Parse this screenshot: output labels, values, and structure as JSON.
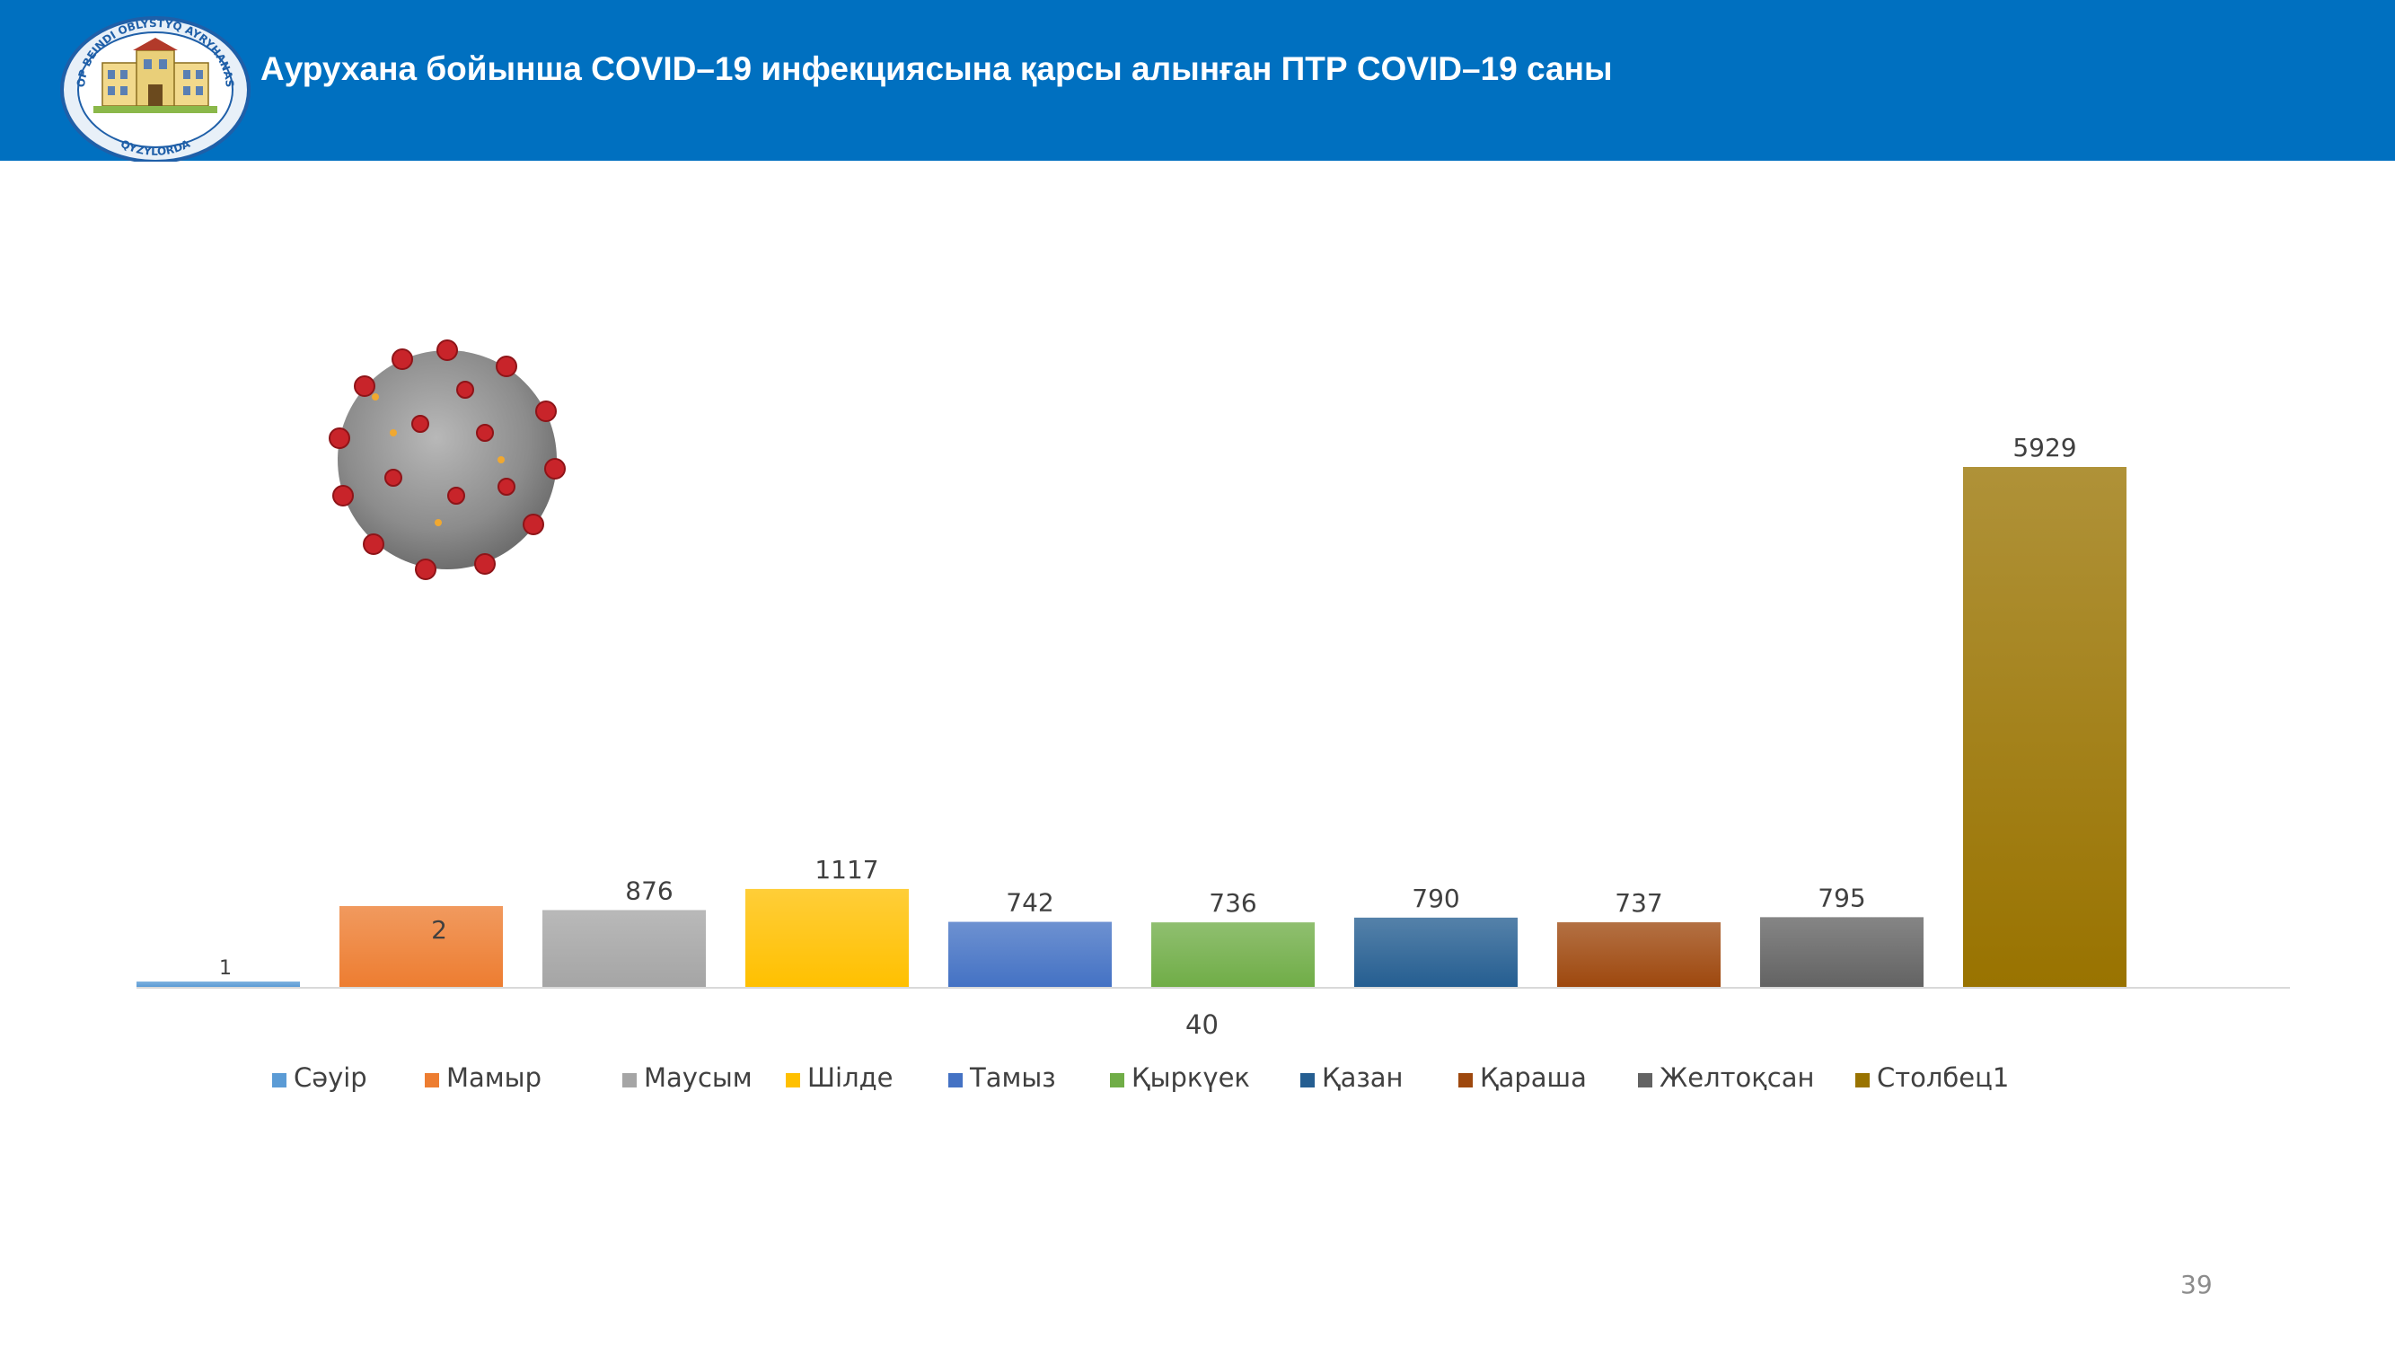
{
  "header": {
    "title": "Аурухана бойынша COVID–19 инфекциясына қарсы алынған ПТР COVID–19 саны",
    "background": "#0070c0",
    "logo": {
      "top_text": "KOP BEINDI OBLYSTYQ AYRYHANASY",
      "bottom_text": "QYZYLORDA"
    }
  },
  "chart_data": {
    "type": "bar",
    "categories": [
      "40"
    ],
    "series": [
      {
        "name": "Сәуір",
        "values": [
          1
        ],
        "color": "#5b9bd5"
      },
      {
        "name": "Мамыр",
        "values": [
          2
        ],
        "color": "#ed7d31"
      },
      {
        "name": "Маусым",
        "values": [
          876
        ],
        "color": "#a5a5a5"
      },
      {
        "name": "Шілде",
        "values": [
          1117
        ],
        "color": "#ffc000"
      },
      {
        "name": "Тамыз",
        "values": [
          742
        ],
        "color": "#4472c4"
      },
      {
        "name": "Қыркүек",
        "values": [
          736
        ],
        "color": "#70ad47"
      },
      {
        "name": "Қазан",
        "values": [
          790
        ],
        "color": "#255e91"
      },
      {
        "name": "Қараша",
        "values": [
          737
        ],
        "color": "#9e480e"
      },
      {
        "name": "Желтоқсан",
        "values": [
          795
        ],
        "color": "#636363"
      },
      {
        "name": "Столбец1",
        "values": [
          5929
        ],
        "color": "#997300"
      }
    ],
    "ylim": [
      0,
      5929
    ],
    "grid": false,
    "legend_position": "bottom"
  },
  "page_number": "39"
}
